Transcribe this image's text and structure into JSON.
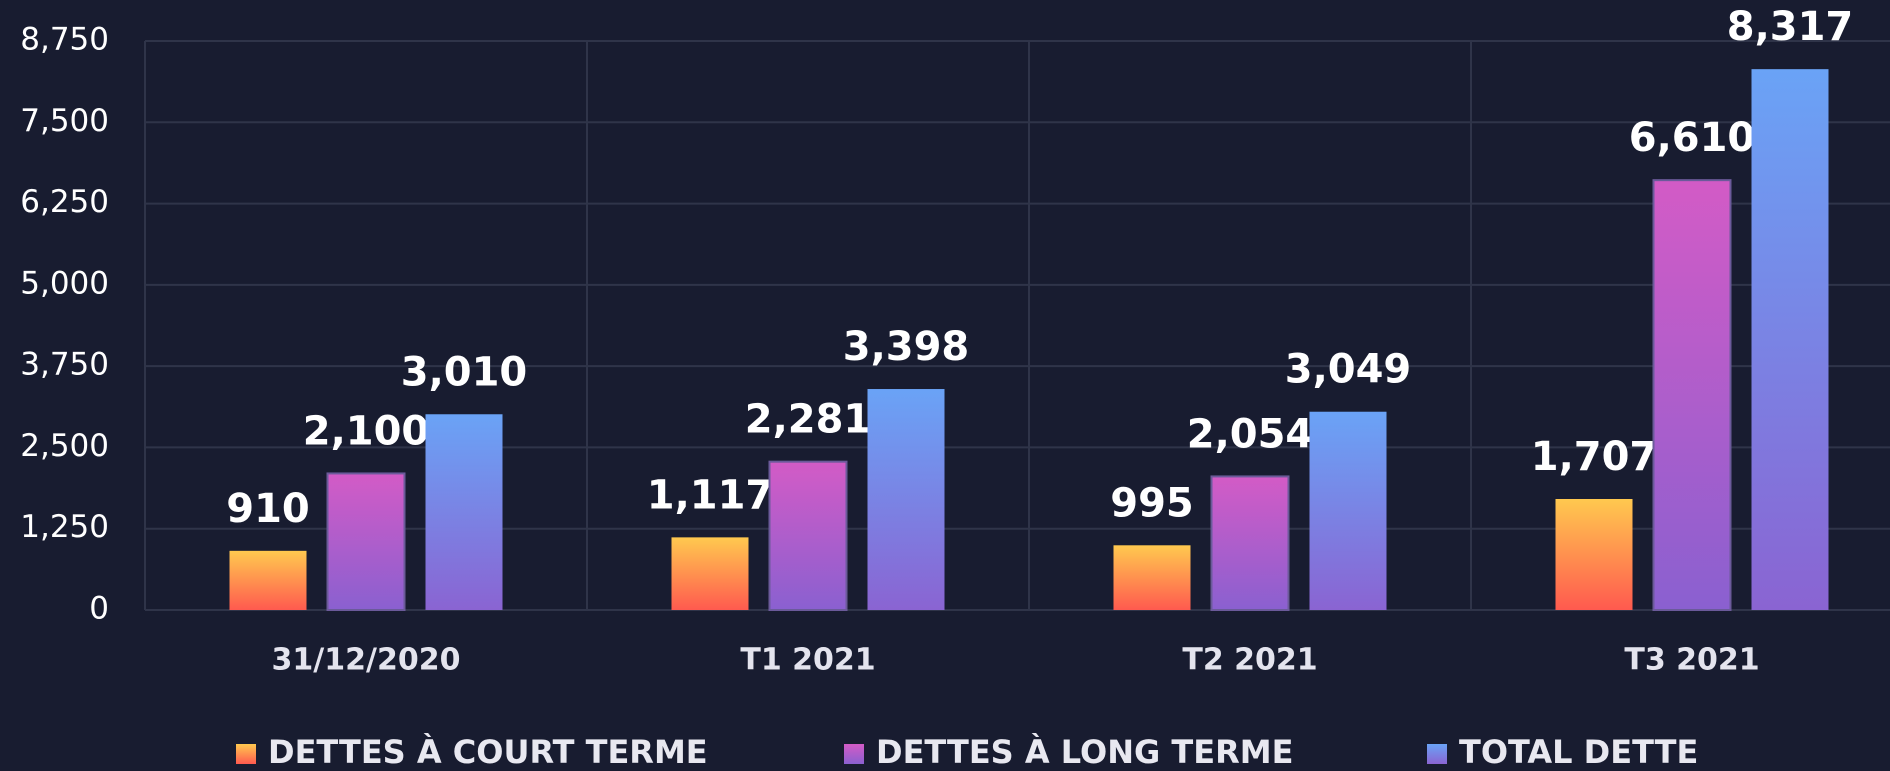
{
  "chart_data": {
    "type": "bar",
    "categories": [
      "31/12/2020",
      "T1 2021",
      "T2 2021",
      "T3 2021"
    ],
    "series": [
      {
        "name": "DETTES À COURT TERME",
        "color": "#ffc94f",
        "color_bottom": "#ff5a4f",
        "values": [
          910,
          1117,
          995,
          1707
        ],
        "value_labels": [
          "910",
          "1,117",
          "995",
          "1,707"
        ]
      },
      {
        "name": "DETTES À LONG TERME",
        "color": "#d35bc6",
        "color_bottom": "#8a60d0",
        "values": [
          2100,
          2281,
          2054,
          6610
        ],
        "value_labels": [
          "2,100",
          "2,281",
          "2,054",
          "6,610"
        ]
      },
      {
        "name": "TOTAL DETTE",
        "color": "#6aa3f6",
        "color_bottom": "#8a64d2",
        "values": [
          3010,
          3398,
          3049,
          8317
        ],
        "value_labels": [
          "3,010",
          "3,398",
          "3,049",
          "8,317"
        ]
      }
    ],
    "ylim": [
      0,
      8750
    ],
    "yticks": [
      0,
      {
        "value": 1250,
        "label": "1,250"
      },
      {
        "value": 2500,
        "label": "2,500"
      },
      {
        "value": 3750,
        "label": "3,750"
      },
      {
        "value": 5000,
        "label": "5,000"
      },
      {
        "value": 6250,
        "label": "6,250"
      },
      {
        "value": 7500,
        "label": "7,500"
      },
      {
        "value": 8750,
        "label": "8,750"
      }
    ],
    "grid": true,
    "legend": "bottom"
  }
}
